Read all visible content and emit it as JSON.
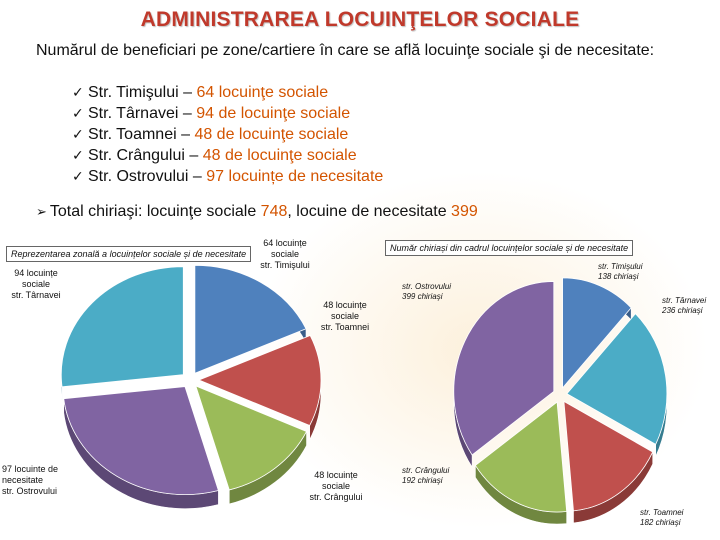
{
  "title": "ADMINISTRAREA LOCUINŢELOR SOCIALE",
  "intro": "Numărul de beneficiari pe zone/cartiere în care se află  locuinţe sociale şi de necesitate:",
  "items": [
    {
      "prefix": "Str. Timişului – ",
      "value": "64 locuinţe sociale"
    },
    {
      "prefix": "Str. Târnavei – ",
      "value": "94 de locuinţe sociale"
    },
    {
      "prefix": "Str. Toamnei – ",
      "value": "48 de locuinţe sociale"
    },
    {
      "prefix": "Str. Crângului – ",
      "value": "48 de locuinţe sociale"
    },
    {
      "prefix": "Str. Ostrovului – ",
      "value": "97 locuințe de necesitate"
    }
  ],
  "total": {
    "prefix": "Total chiriaşi:   locuinţe sociale ",
    "social": "748",
    "middle": ", locuine de necesitate ",
    "necesitate": "399"
  },
  "colors": {
    "timisului": "#4f81bd",
    "tarnavei": "#4bacc6",
    "toamnei": "#c0504d",
    "crangului": "#9bbb59",
    "ostrovului": "#8064a2",
    "title": "#c0392b",
    "highlight": "#d35400"
  },
  "chart_data": [
    {
      "type": "pie",
      "title": "Reprezentarea zonală a locuințelor sociale și de necesitate",
      "series": [
        {
          "name": "str. Timişului",
          "value": 64,
          "label": [
            "64 locuințe",
            "sociale",
            "str. Timişului"
          ]
        },
        {
          "name": "str. Toamnei",
          "value": 48,
          "label": [
            "48 locuințe",
            "sociale",
            "str. Toamnei"
          ]
        },
        {
          "name": "str. Crângului",
          "value": 48,
          "label": [
            "48 locuințe",
            "sociale",
            "str. Crângului"
          ]
        },
        {
          "name": "str. Ostrovului",
          "value": 97,
          "label": [
            "97 locuinte de",
            "necesitate",
            "str. Ostrovului"
          ]
        },
        {
          "name": "str. Târnavei",
          "value": 94,
          "label": [
            "94 locuințe",
            "sociale",
            "str. Târnavei"
          ]
        }
      ]
    },
    {
      "type": "pie",
      "title": "Număr chiriași din cadrul locuințelor sociale și de necesitate",
      "series": [
        {
          "name": "str. Timişului",
          "value": 138,
          "label": [
            "str. Timişului",
            "138 chiriaşi"
          ]
        },
        {
          "name": "str. Târnavei",
          "value": 236,
          "label": [
            "str. Târnavei",
            "236 chiriaşi"
          ]
        },
        {
          "name": "str. Toamnei",
          "value": 182,
          "label": [
            "str. Toamnei",
            "182 chiriaşi"
          ]
        },
        {
          "name": "str. Crângului",
          "value": 192,
          "label": [
            "str. Crângului",
            "192 chiriaşi"
          ]
        },
        {
          "name": "str. Ostrovului",
          "value": 399,
          "label": [
            "str. Ostrovului",
            "399 chiriaşi"
          ]
        }
      ]
    }
  ]
}
